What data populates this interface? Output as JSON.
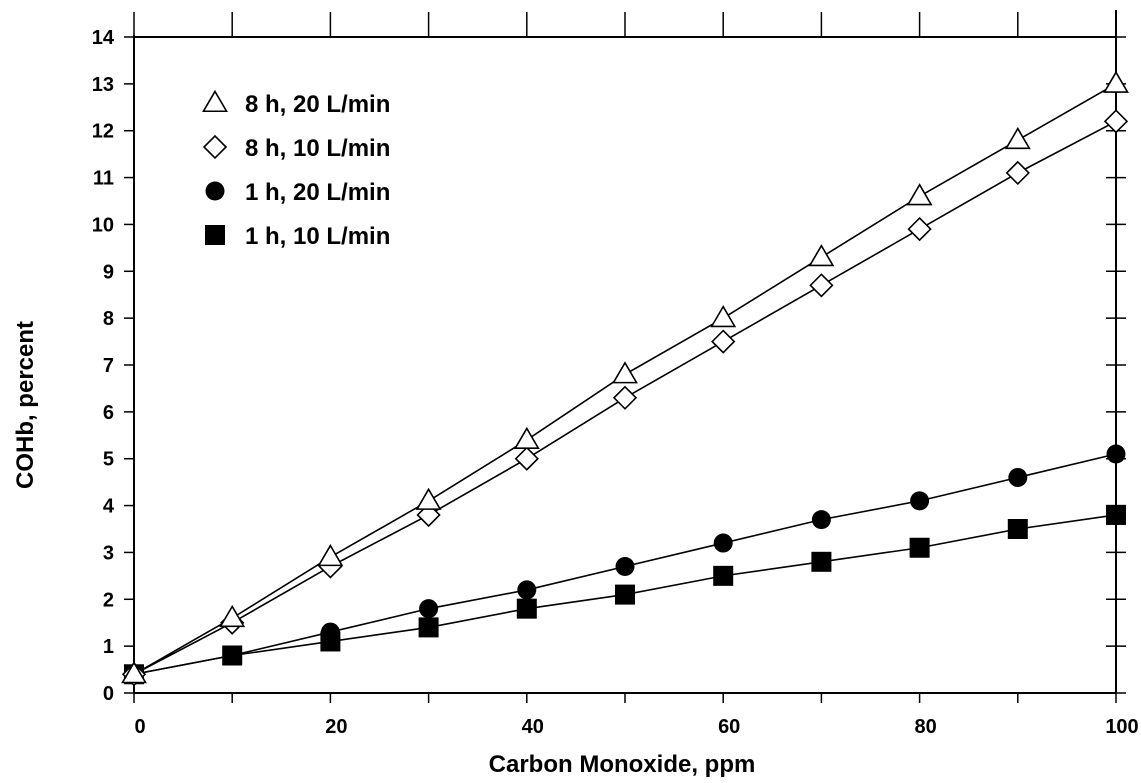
{
  "chart_data": {
    "type": "line",
    "title": "",
    "xlabel": "Carbon Monoxide, ppm",
    "ylabel": "COHb, percent",
    "xlim": [
      0,
      100
    ],
    "ylim": [
      0,
      14
    ],
    "x_ticks": [
      0,
      20,
      40,
      60,
      80,
      100
    ],
    "y_ticks": [
      0,
      1,
      2,
      3,
      4,
      5,
      6,
      7,
      8,
      9,
      10,
      11,
      12,
      13,
      14
    ],
    "grid": false,
    "legend_position": "top-left",
    "series": [
      {
        "name": "8 h, 20 L/min",
        "marker": "triangle-open",
        "x": [
          0,
          10,
          20,
          30,
          40,
          50,
          60,
          70,
          80,
          90,
          100
        ],
        "values": [
          0.4,
          1.6,
          2.9,
          4.1,
          5.4,
          6.8,
          8.0,
          9.3,
          10.6,
          11.8,
          13.0
        ]
      },
      {
        "name": "8 h, 10 L/min",
        "marker": "diamond-open",
        "x": [
          0,
          10,
          20,
          30,
          40,
          50,
          60,
          70,
          80,
          90,
          100
        ],
        "values": [
          0.4,
          1.5,
          2.7,
          3.8,
          5.0,
          6.3,
          7.5,
          8.7,
          9.9,
          11.1,
          12.2
        ]
      },
      {
        "name": "1 h, 20 L/min",
        "marker": "circle-filled",
        "x": [
          0,
          10,
          20,
          30,
          40,
          50,
          60,
          70,
          80,
          90,
          100
        ],
        "values": [
          0.4,
          0.8,
          1.3,
          1.8,
          2.2,
          2.7,
          3.2,
          3.7,
          4.1,
          4.6,
          5.1
        ]
      },
      {
        "name": "1 h, 10 L/min",
        "marker": "square-filled",
        "x": [
          0,
          10,
          20,
          30,
          40,
          50,
          60,
          70,
          80,
          90,
          100
        ],
        "values": [
          0.4,
          0.8,
          1.1,
          1.4,
          1.8,
          2.1,
          2.5,
          2.8,
          3.1,
          3.5,
          3.8
        ]
      }
    ]
  }
}
